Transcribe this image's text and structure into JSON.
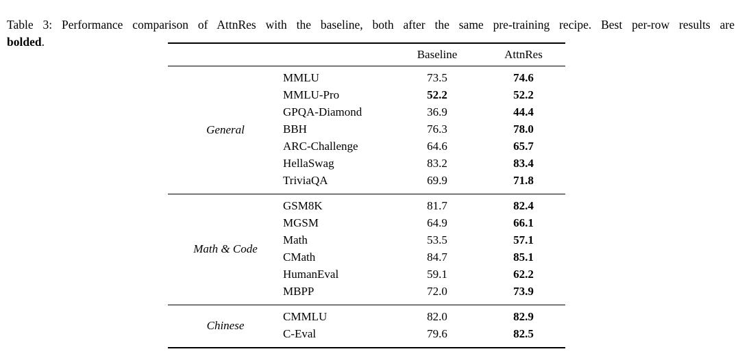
{
  "caption": {
    "line1": "Table 3: Performance comparison of AttnRes with the baseline, both after the same pre-training recipe. Best per-row results are",
    "bold_word": "bolded",
    "suffix": "."
  },
  "table": {
    "col_headers": [
      "Baseline",
      "AttnRes"
    ],
    "groups": [
      {
        "name": "General",
        "rows": [
          {
            "benchmark": "MMLU",
            "baseline": "73.5",
            "attnres": "74.6",
            "baseline_bold": false,
            "attnres_bold": true
          },
          {
            "benchmark": "MMLU-Pro",
            "baseline": "52.2",
            "attnres": "52.2",
            "baseline_bold": true,
            "attnres_bold": true
          },
          {
            "benchmark": "GPQA-Diamond",
            "baseline": "36.9",
            "attnres": "44.4",
            "baseline_bold": false,
            "attnres_bold": true
          },
          {
            "benchmark": "BBH",
            "baseline": "76.3",
            "attnres": "78.0",
            "baseline_bold": false,
            "attnres_bold": true
          },
          {
            "benchmark": "ARC-Challenge",
            "baseline": "64.6",
            "attnres": "65.7",
            "baseline_bold": false,
            "attnres_bold": true
          },
          {
            "benchmark": "HellaSwag",
            "baseline": "83.2",
            "attnres": "83.4",
            "baseline_bold": false,
            "attnres_bold": true
          },
          {
            "benchmark": "TriviaQA",
            "baseline": "69.9",
            "attnres": "71.8",
            "baseline_bold": false,
            "attnres_bold": true
          }
        ]
      },
      {
        "name": "Math & Code",
        "rows": [
          {
            "benchmark": "GSM8K",
            "baseline": "81.7",
            "attnres": "82.4",
            "baseline_bold": false,
            "attnres_bold": true
          },
          {
            "benchmark": "MGSM",
            "baseline": "64.9",
            "attnres": "66.1",
            "baseline_bold": false,
            "attnres_bold": true
          },
          {
            "benchmark": "Math",
            "baseline": "53.5",
            "attnres": "57.1",
            "baseline_bold": false,
            "attnres_bold": true
          },
          {
            "benchmark": "CMath",
            "baseline": "84.7",
            "attnres": "85.1",
            "baseline_bold": false,
            "attnres_bold": true
          },
          {
            "benchmark": "HumanEval",
            "baseline": "59.1",
            "attnres": "62.2",
            "baseline_bold": false,
            "attnres_bold": true
          },
          {
            "benchmark": "MBPP",
            "baseline": "72.0",
            "attnres": "73.9",
            "baseline_bold": false,
            "attnres_bold": true
          }
        ]
      },
      {
        "name": "Chinese",
        "rows": [
          {
            "benchmark": "CMMLU",
            "baseline": "82.0",
            "attnres": "82.9",
            "baseline_bold": false,
            "attnres_bold": true
          },
          {
            "benchmark": "C-Eval",
            "baseline": "79.6",
            "attnres": "82.5",
            "baseline_bold": false,
            "attnres_bold": true
          }
        ]
      }
    ]
  },
  "colors": {
    "text": "#000000",
    "background": "#ffffff",
    "rule": "#000000"
  }
}
